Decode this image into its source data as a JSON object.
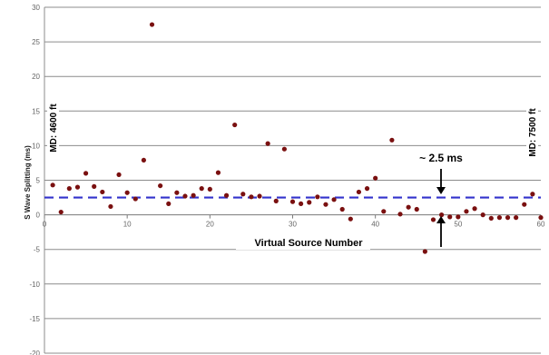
{
  "chart_data": {
    "type": "scatter",
    "xlabel": "Virtual Source Number",
    "ylabel": "S Wave Splitting (ms)",
    "xlim": [
      0,
      60
    ],
    "ylim": [
      -20,
      30
    ],
    "x_ticks": [
      0,
      10,
      20,
      30,
      40,
      50,
      60
    ],
    "y_ticks": [
      -20,
      -15,
      -10,
      -5,
      0,
      5,
      10,
      15,
      20,
      25,
      30
    ],
    "grid": "horizontal",
    "reference_line": {
      "value": 2.5,
      "style": "dashed",
      "color": "#3333cc"
    },
    "marker_color": "#7a1010",
    "series": [
      {
        "points": [
          [
            1,
            4.3
          ],
          [
            2,
            0.4
          ],
          [
            3,
            3.8
          ],
          [
            4,
            4.0
          ],
          [
            5,
            6.0
          ],
          [
            6,
            4.1
          ],
          [
            7,
            3.3
          ],
          [
            8,
            1.2
          ],
          [
            9,
            5.8
          ],
          [
            10,
            3.2
          ],
          [
            11,
            2.3
          ],
          [
            12,
            7.9
          ],
          [
            13,
            27.5
          ],
          [
            14,
            4.2
          ],
          [
            15,
            1.6
          ],
          [
            16,
            3.2
          ],
          [
            17,
            2.7
          ],
          [
            18,
            2.8
          ],
          [
            19,
            3.8
          ],
          [
            20,
            3.7
          ],
          [
            21,
            6.1
          ],
          [
            22,
            2.8
          ],
          [
            23,
            13.0
          ],
          [
            24,
            3.0
          ],
          [
            25,
            2.6
          ],
          [
            26,
            2.7
          ],
          [
            27,
            10.3
          ],
          [
            28,
            2.0
          ],
          [
            29,
            9.5
          ],
          [
            30,
            1.9
          ],
          [
            31,
            1.6
          ],
          [
            32,
            1.8
          ],
          [
            33,
            2.6
          ],
          [
            34,
            1.5
          ],
          [
            35,
            2.2
          ],
          [
            36,
            0.8
          ],
          [
            37,
            -0.6
          ],
          [
            38,
            3.3
          ],
          [
            39,
            3.8
          ],
          [
            40,
            5.3
          ],
          [
            41,
            0.5
          ],
          [
            42,
            10.8
          ],
          [
            43,
            0.1
          ],
          [
            44,
            1.1
          ],
          [
            45,
            0.8
          ],
          [
            46,
            -5.3
          ],
          [
            47,
            -0.7
          ],
          [
            48,
            0.0
          ],
          [
            49,
            -0.3
          ],
          [
            50,
            -0.3
          ],
          [
            51,
            0.5
          ],
          [
            52,
            0.9
          ],
          [
            53,
            0.0
          ],
          [
            54,
            -0.5
          ],
          [
            55,
            -0.4
          ],
          [
            56,
            -0.4
          ],
          [
            57,
            -0.4
          ],
          [
            58,
            1.5
          ],
          [
            59,
            3.0
          ],
          [
            60,
            -0.4
          ]
        ]
      }
    ],
    "annotations": {
      "left": "MD: 4600 ft",
      "right": "MD: 7500 ft",
      "marker": "~ 2.5 ms"
    }
  }
}
